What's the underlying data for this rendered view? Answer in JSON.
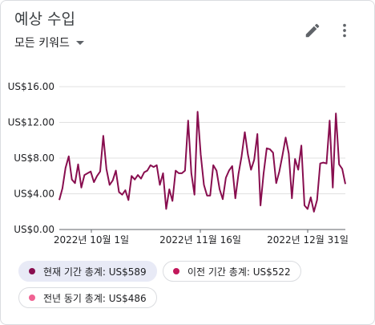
{
  "card": {
    "title": "예상 수입",
    "dropdown_label": "모든 키워드",
    "icons": [
      "edit-icon",
      "more-vert-icon",
      "dropdown-caret-icon"
    ]
  },
  "chips": [
    {
      "label": "현재 기간 총계: US$589",
      "color": "#880e4f",
      "selected": true
    },
    {
      "label": "이전 기간 총계: US$522",
      "color": "#c2185b",
      "selected": false
    },
    {
      "label": "전년 동기 총계: US$486",
      "color": "#f06292",
      "selected": false
    }
  ],
  "chart_data": {
    "type": "line",
    "y_ticks": [
      "US$0.00",
      "US$4.00",
      "US$8.00",
      "US$12.00",
      "US$16.00"
    ],
    "x_ticks": [
      "2022년 10월 1일",
      "2022년 11월 16일",
      "2022년 12월 31일"
    ],
    "ylim": [
      0,
      16
    ],
    "grid": true,
    "series": [
      {
        "color": "#880e4f",
        "values": [
          3.3,
          4.6,
          6.9,
          8.2,
          5.6,
          5.2,
          7.3,
          4.7,
          6.1,
          6.3,
          6.5,
          5.3,
          6.0,
          6.5,
          10.5,
          6.8,
          5.0,
          5.5,
          6.6,
          4.2,
          3.9,
          4.4,
          3.3,
          6.0,
          5.6,
          6.1,
          5.7,
          6.4,
          6.6,
          7.2,
          7.0,
          7.2,
          5.0,
          6.3,
          2.3,
          4.5,
          3.2,
          6.6,
          6.3,
          6.3,
          6.6,
          12.2,
          6.3,
          3.9,
          13.2,
          8.4,
          5.0,
          3.8,
          3.8,
          7.2,
          6.6,
          4.5,
          3.4,
          5.8,
          6.6,
          7.1,
          3.5,
          6.2,
          8.2,
          10.9,
          8.4,
          6.7,
          7.8,
          10.7,
          2.7,
          6.3,
          9.1,
          9.0,
          8.6,
          5.2,
          6.5,
          8.3,
          10.3,
          8.5,
          3.5,
          7.9,
          6.7,
          9.4,
          2.7,
          2.3,
          3.6,
          2.0,
          3.3,
          7.4,
          7.5,
          7.4,
          12.2,
          4.7,
          13.0,
          7.3,
          6.8,
          5.1
        ]
      }
    ]
  }
}
